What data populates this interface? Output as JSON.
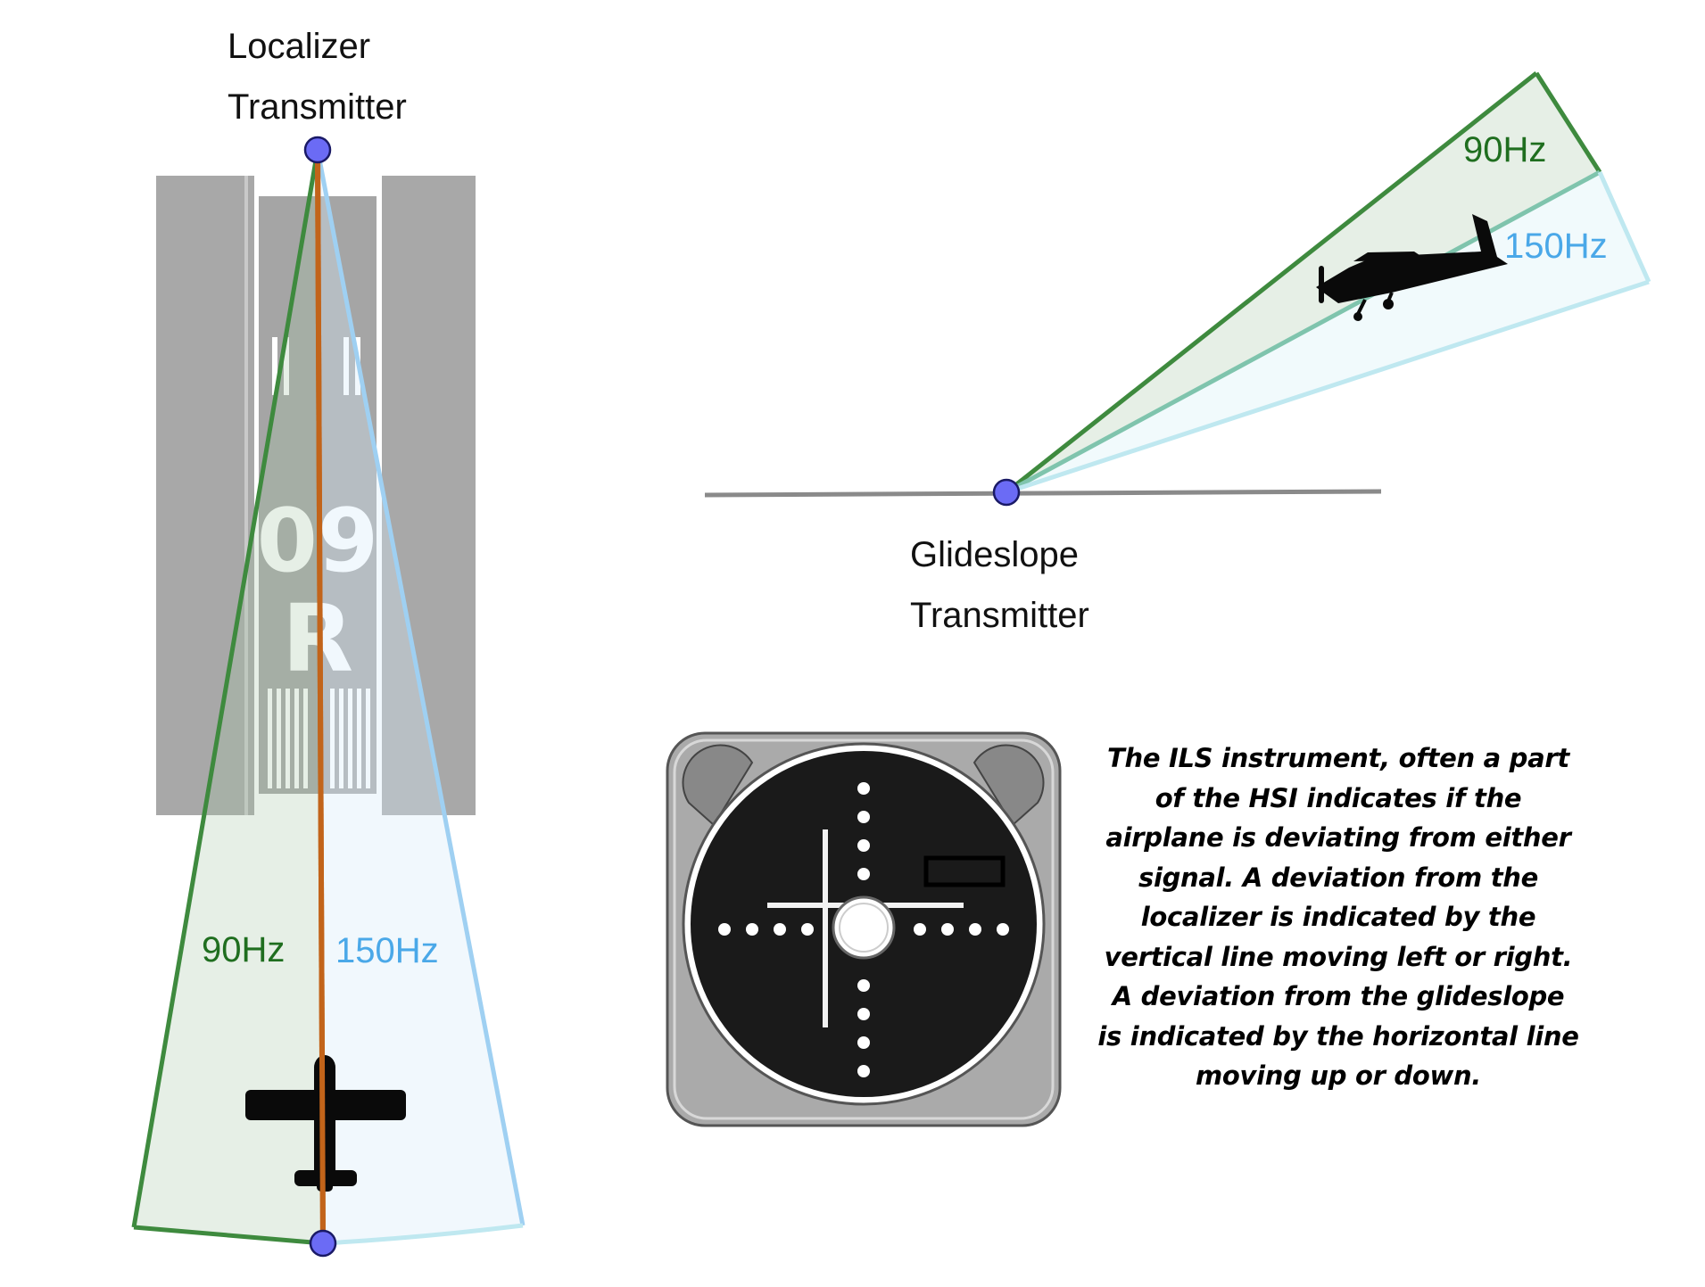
{
  "localizer": {
    "label_line1": "Localizer",
    "label_line2": "Transmitter",
    "runway_number": "09",
    "runway_letter": "R",
    "left_lobe": "90Hz",
    "right_lobe": "150Hz"
  },
  "glideslope": {
    "label_line1": "Glideslope",
    "label_line2": "Transmitter",
    "upper_lobe": "90Hz",
    "lower_lobe": "150Hz"
  },
  "instrument": {
    "description": "The ILS instrument, often a part of the HSI indicates if the airplane is deviating from either signal. A deviation from the localizer is indicated by the vertical line moving left or right. A deviation from the glideslope is indicated by the horizontal line moving up or down."
  },
  "colors": {
    "green": "#3e8a3e",
    "green_text": "#1f6e1f",
    "blue": "#9fd0f2",
    "blue_text": "#4aa8e8",
    "center_line": "#c2641a",
    "transmitter_dot": "#6b6bf5",
    "runway_gray": "#a8a8a8"
  },
  "icons": [
    "airplane-top-icon",
    "airplane-side-icon",
    "transmitter-dot-icon"
  ]
}
